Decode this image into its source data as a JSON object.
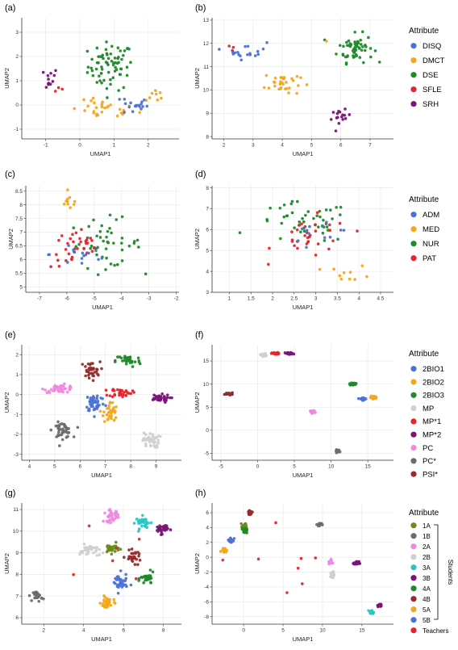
{
  "colors": {
    "DISQ": "#4c72d9",
    "DMCT": "#f2a81d",
    "DSE": "#1f8a2a",
    "SFLE": "#e8242b",
    "SRH": "#7a1479",
    "ADM": "#4c72d9",
    "MED": "#f2a81d",
    "NUR": "#1f8a2a",
    "PAT": "#e8242b",
    "2BIO1": "#4c72d9",
    "2BIO2": "#f2a81d",
    "2BIO3": "#1f8a2a",
    "MP": "#d0d0d0",
    "MP*1": "#e8242b",
    "MP*2": "#7a1479",
    "PC": "#ee88e0",
    "PC*": "#6b6b6b",
    "PSI*": "#962c2c",
    "1A": "#6a8a1a",
    "1B": "#6b6b6b",
    "2A": "#ee88e0",
    "2B": "#d0d0d0",
    "3A": "#2ec4c4",
    "3B": "#7a1479",
    "4A": "#1f8a2a",
    "4B": "#962c2c",
    "5A": "#f2a81d",
    "5B": "#4c72d9",
    "Teachers": "#e8242b",
    "grid": "#e6e6e6",
    "axis": "#333333"
  },
  "legends": [
    {
      "title": "Attribute",
      "entries": [
        "DISQ",
        "DMCT",
        "DSE",
        "SFLE",
        "SRH"
      ]
    },
    {
      "title": "Attribute",
      "entries": [
        "ADM",
        "MED",
        "NUR",
        "PAT"
      ]
    },
    {
      "title": "Attribute",
      "entries": [
        "2BIO1",
        "2BIO2",
        "2BIO3",
        "MP",
        "MP*1",
        "MP*2",
        "PC",
        "PC*",
        "PSI*"
      ]
    },
    {
      "title": "Attribute",
      "entries": [
        "1A",
        "1B",
        "2A",
        "2B",
        "3A",
        "3B",
        "4A",
        "4B",
        "5A",
        "5B",
        "Teachers"
      ],
      "bracket_label": "Students"
    }
  ],
  "chart_data": [
    {
      "panel": "(a)",
      "type": "scatter",
      "xlabel": "UMAP1",
      "ylabel": "UMAP2",
      "xlim": [
        -1.7,
        2.9
      ],
      "ylim": [
        -1.4,
        3.6
      ],
      "xticks": [
        -1,
        0,
        1,
        2
      ],
      "yticks": [
        -1,
        0,
        1,
        2,
        3
      ],
      "clusters": [
        {
          "name": "DSE",
          "cx": 0.9,
          "cy": 1.6,
          "sx": 0.6,
          "sy": 0.9,
          "n": 70
        },
        {
          "name": "DMCT",
          "cx": 0.7,
          "cy": -0.2,
          "sx": 0.9,
          "sy": 0.35,
          "n": 30
        },
        {
          "name": "DMCT",
          "cx": 2.2,
          "cy": 0.4,
          "sx": 0.25,
          "sy": 0.25,
          "n": 8
        },
        {
          "name": "DISQ",
          "cx": 1.6,
          "cy": 0.0,
          "sx": 0.35,
          "sy": 0.4,
          "n": 18
        },
        {
          "name": "SRH",
          "cx": -1.0,
          "cy": 1.1,
          "sx": 0.35,
          "sy": 0.4,
          "n": 12
        },
        {
          "name": "SFLE",
          "cx": -0.6,
          "cy": 0.6,
          "sx": 0.2,
          "sy": 0.2,
          "n": 3
        }
      ]
    },
    {
      "panel": "(b)",
      "type": "scatter",
      "xlabel": "UMAP1",
      "ylabel": "UMAP2",
      "xlim": [
        1.6,
        7.8
      ],
      "ylim": [
        7.9,
        13.1
      ],
      "xticks": [
        2,
        3,
        4,
        5,
        6,
        7
      ],
      "yticks": [
        8,
        9,
        10,
        11,
        12,
        13
      ],
      "clusters": [
        {
          "name": "DSE",
          "cx": 6.5,
          "cy": 11.8,
          "sx": 0.55,
          "sy": 0.55,
          "n": 60
        },
        {
          "name": "DMCT",
          "cx": 4.0,
          "cy": 10.3,
          "sx": 0.55,
          "sy": 0.5,
          "n": 32
        },
        {
          "name": "DMCT",
          "cx": 5.5,
          "cy": 12.0,
          "sx": 0.1,
          "sy": 0.1,
          "n": 1
        },
        {
          "name": "DISQ",
          "cx": 2.8,
          "cy": 11.7,
          "sx": 0.6,
          "sy": 0.35,
          "n": 18
        },
        {
          "name": "SRH",
          "cx": 6.0,
          "cy": 8.8,
          "sx": 0.3,
          "sy": 0.3,
          "n": 16
        },
        {
          "name": "SFLE",
          "cx": 2.3,
          "cy": 11.9,
          "sx": 0.2,
          "sy": 0.3,
          "n": 3
        }
      ]
    },
    {
      "panel": "(c)",
      "type": "scatter",
      "xlabel": "UMAP1",
      "ylabel": "UMAP2",
      "xlim": [
        -7.5,
        -1.9
      ],
      "ylim": [
        4.8,
        8.7
      ],
      "xticks": [
        -7,
        -6,
        -5,
        -4,
        -3,
        -2
      ],
      "yticks": [
        5,
        5.5,
        6,
        6.5,
        7,
        7.5,
        8,
        8.5
      ],
      "clusters": [
        {
          "name": "NUR",
          "cx": -4.6,
          "cy": 6.6,
          "sx": 1.2,
          "sy": 0.8,
          "n": 45
        },
        {
          "name": "PAT",
          "cx": -5.6,
          "cy": 6.4,
          "sx": 0.9,
          "sy": 0.65,
          "n": 35
        },
        {
          "name": "ADM",
          "cx": -5.4,
          "cy": 6.2,
          "sx": 1.1,
          "sy": 0.55,
          "n": 15
        },
        {
          "name": "MED",
          "cx": -5.9,
          "cy": 8.1,
          "sx": 0.3,
          "sy": 0.25,
          "n": 10
        }
      ]
    },
    {
      "panel": "(d)",
      "type": "scatter",
      "xlabel": "UMAP1",
      "ylabel": "UMAP2",
      "xlim": [
        0.6,
        4.8
      ],
      "ylim": [
        3.0,
        8.1
      ],
      "xticks": [
        1,
        1.5,
        2,
        2.5,
        3,
        3.5,
        4,
        4.5
      ],
      "yticks": [
        3,
        4,
        5,
        6,
        7,
        8
      ],
      "clusters": [
        {
          "name": "NUR",
          "cx": 2.7,
          "cy": 6.3,
          "sx": 1.0,
          "sy": 0.9,
          "n": 45
        },
        {
          "name": "PAT",
          "cx": 2.9,
          "cy": 5.6,
          "sx": 0.8,
          "sy": 0.9,
          "n": 32
        },
        {
          "name": "ADM",
          "cx": 3.2,
          "cy": 5.9,
          "sx": 0.7,
          "sy": 0.8,
          "n": 12
        },
        {
          "name": "MED",
          "cx": 3.8,
          "cy": 3.9,
          "sx": 0.45,
          "sy": 0.35,
          "n": 10
        }
      ]
    },
    {
      "panel": "(e)",
      "type": "scatter",
      "xlabel": "UMAP1",
      "ylabel": "UMAP2",
      "xlim": [
        3.7,
        10.0
      ],
      "ylim": [
        -3.3,
        2.5
      ],
      "xticks": [
        4,
        5,
        6,
        7,
        8,
        9
      ],
      "yticks": [
        -3,
        -2,
        -1,
        0,
        1,
        2
      ],
      "clusters": [
        {
          "name": "PC",
          "cx": 5.2,
          "cy": 0.3,
          "sx": 0.55,
          "sy": 0.18,
          "n": 40
        },
        {
          "name": "PC*",
          "cx": 5.3,
          "cy": -1.8,
          "sx": 0.35,
          "sy": 0.35,
          "n": 40
        },
        {
          "name": "PSI*",
          "cx": 6.4,
          "cy": 1.2,
          "sx": 0.35,
          "sy": 0.4,
          "n": 35
        },
        {
          "name": "2BIO3",
          "cx": 7.9,
          "cy": 1.7,
          "sx": 0.45,
          "sy": 0.3,
          "n": 35
        },
        {
          "name": "2BIO1",
          "cx": 6.6,
          "cy": -0.4,
          "sx": 0.35,
          "sy": 0.45,
          "n": 45
        },
        {
          "name": "2BIO2",
          "cx": 7.2,
          "cy": -0.9,
          "sx": 0.25,
          "sy": 0.5,
          "n": 35
        },
        {
          "name": "MP*1",
          "cx": 7.6,
          "cy": 0.1,
          "sx": 0.4,
          "sy": 0.2,
          "n": 35
        },
        {
          "name": "MP*2",
          "cx": 9.1,
          "cy": -0.2,
          "sx": 0.4,
          "sy": 0.18,
          "n": 35
        },
        {
          "name": "MP",
          "cx": 8.8,
          "cy": -2.3,
          "sx": 0.3,
          "sy": 0.35,
          "n": 40
        }
      ]
    },
    {
      "panel": "(f)",
      "type": "scatter",
      "xlabel": "UMAP1",
      "ylabel": "UMAP2",
      "xlim": [
        -6.2,
        18.5
      ],
      "ylim": [
        -6.5,
        18.5
      ],
      "xticks": [
        -5,
        0,
        5,
        10,
        15
      ],
      "yticks": [
        -5,
        0,
        5,
        10,
        15
      ],
      "clusters": [
        {
          "name": "MP",
          "cx": 0.8,
          "cy": 16.3,
          "sx": 0.35,
          "sy": 0.3,
          "n": 25
        },
        {
          "name": "MP*1",
          "cx": 2.5,
          "cy": 16.6,
          "sx": 0.5,
          "sy": 0.2,
          "n": 30
        },
        {
          "name": "MP*2",
          "cx": 4.3,
          "cy": 16.6,
          "sx": 0.5,
          "sy": 0.2,
          "n": 30
        },
        {
          "name": "PSI*",
          "cx": -3.9,
          "cy": 7.9,
          "sx": 0.5,
          "sy": 0.2,
          "n": 25
        },
        {
          "name": "PC",
          "cx": 7.5,
          "cy": 4.0,
          "sx": 0.3,
          "sy": 0.3,
          "n": 25
        },
        {
          "name": "2BIO3",
          "cx": 12.9,
          "cy": 10.0,
          "sx": 0.35,
          "sy": 0.2,
          "n": 30
        },
        {
          "name": "2BIO1",
          "cx": 14.4,
          "cy": 6.8,
          "sx": 0.4,
          "sy": 0.2,
          "n": 30
        },
        {
          "name": "2BIO2",
          "cx": 15.8,
          "cy": 7.1,
          "sx": 0.35,
          "sy": 0.25,
          "n": 30
        },
        {
          "name": "PC*",
          "cx": 11.0,
          "cy": -4.5,
          "sx": 0.35,
          "sy": 0.25,
          "n": 25
        }
      ]
    },
    {
      "panel": "(g)",
      "type": "scatter",
      "xlabel": "UMAP1",
      "ylabel": "UMAP2",
      "xlim": [
        0.9,
        8.9
      ],
      "ylim": [
        5.7,
        11.3
      ],
      "xticks": [
        2,
        4,
        6,
        8
      ],
      "yticks": [
        6,
        7,
        8,
        9,
        10,
        11
      ],
      "clusters": [
        {
          "name": "1B",
          "cx": 1.7,
          "cy": 7.0,
          "sx": 0.2,
          "sy": 0.22,
          "n": 25
        },
        {
          "name": "2A",
          "cx": 5.4,
          "cy": 10.7,
          "sx": 0.35,
          "sy": 0.25,
          "n": 30
        },
        {
          "name": "3A",
          "cx": 7.0,
          "cy": 10.4,
          "sx": 0.35,
          "sy": 0.25,
          "n": 30
        },
        {
          "name": "3B",
          "cx": 7.9,
          "cy": 10.1,
          "sx": 0.3,
          "sy": 0.2,
          "n": 30
        },
        {
          "name": "2B",
          "cx": 4.3,
          "cy": 9.1,
          "sx": 0.45,
          "sy": 0.25,
          "n": 35
        },
        {
          "name": "1A",
          "cx": 5.4,
          "cy": 9.2,
          "sx": 0.35,
          "sy": 0.2,
          "n": 30
        },
        {
          "name": "4B",
          "cx": 6.5,
          "cy": 8.8,
          "sx": 0.35,
          "sy": 0.25,
          "n": 30
        },
        {
          "name": "4A",
          "cx": 7.2,
          "cy": 7.8,
          "sx": 0.3,
          "sy": 0.25,
          "n": 30
        },
        {
          "name": "5B",
          "cx": 5.8,
          "cy": 7.6,
          "sx": 0.35,
          "sy": 0.4,
          "n": 35
        },
        {
          "name": "5A",
          "cx": 5.2,
          "cy": 6.7,
          "sx": 0.3,
          "sy": 0.3,
          "n": 30
        },
        {
          "name": "Teachers",
          "cx": 5.5,
          "cy": 8.6,
          "sx": 1.5,
          "sy": 1.2,
          "n": 6
        }
      ]
    },
    {
      "panel": "(h)",
      "type": "scatter",
      "xlabel": "UMAP1",
      "ylabel": "UMAP2",
      "xlim": [
        -4.0,
        19.0
      ],
      "ylim": [
        -9.0,
        7.3
      ],
      "xticks": [
        0,
        5,
        10,
        15
      ],
      "yticks": [
        -8,
        -6,
        -4,
        -2,
        0,
        2,
        4,
        6
      ],
      "clusters": [
        {
          "name": "4B",
          "cx": 0.8,
          "cy": 6.0,
          "sx": 0.25,
          "sy": 0.2,
          "n": 25
        },
        {
          "name": "1A",
          "cx": 0.2,
          "cy": 4.3,
          "sx": 0.3,
          "sy": 0.3,
          "n": 20
        },
        {
          "name": "4A",
          "cx": 0.1,
          "cy": 3.6,
          "sx": 0.3,
          "sy": 0.3,
          "n": 20
        },
        {
          "name": "5B",
          "cx": -1.6,
          "cy": 2.3,
          "sx": 0.35,
          "sy": 0.35,
          "n": 25
        },
        {
          "name": "5A",
          "cx": -2.5,
          "cy": 1.0,
          "sx": 0.3,
          "sy": 0.25,
          "n": 20
        },
        {
          "name": "1B",
          "cx": 9.6,
          "cy": 4.4,
          "sx": 0.25,
          "sy": 0.2,
          "n": 22
        },
        {
          "name": "2A",
          "cx": 11.0,
          "cy": -0.6,
          "sx": 0.2,
          "sy": 0.3,
          "n": 18
        },
        {
          "name": "2B",
          "cx": 11.2,
          "cy": -2.5,
          "sx": 0.25,
          "sy": 0.5,
          "n": 18
        },
        {
          "name": "3B",
          "cx": 14.3,
          "cy": -0.8,
          "sx": 0.3,
          "sy": 0.2,
          "n": 22
        },
        {
          "name": "3A",
          "cx": 16.2,
          "cy": -7.4,
          "sx": 0.25,
          "sy": 0.25,
          "n": 22
        },
        {
          "name": "3B",
          "cx": 17.3,
          "cy": -6.5,
          "sx": 0.3,
          "sy": 0.2,
          "n": 22
        },
        {
          "name": "Teachers",
          "cx": 8.0,
          "cy": 0.0,
          "sx": 8.0,
          "sy": 4.0,
          "n": 8
        }
      ]
    }
  ]
}
